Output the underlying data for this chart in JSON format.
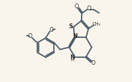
{
  "bg_color": "#faf5ec",
  "line_color": "#4a5a6a",
  "text_color": "#2a2a2a",
  "bond_lw": 1.3,
  "figsize": [
    1.91,
    1.19
  ],
  "dpi": 100,
  "xlim": [
    0,
    10
  ],
  "ylim": [
    0,
    6.5
  ]
}
